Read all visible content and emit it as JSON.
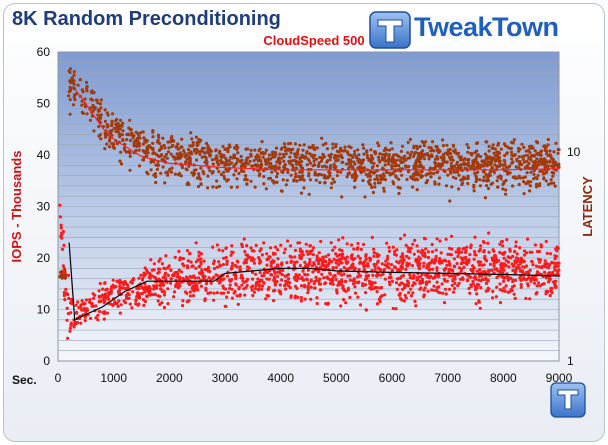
{
  "header": {
    "title": "8K Random Preconditioning",
    "brand": "TweakTown"
  },
  "chart_data": {
    "type": "scatter",
    "title": "8K Random Preconditioning",
    "subtitle": "CloudSpeed 500",
    "xlabel": "Sec.",
    "ylabel": "IOPS - Thousands",
    "y2label": "LATENCY",
    "xlim": [
      0,
      9000
    ],
    "ylim": [
      0,
      60
    ],
    "y2scale": "log",
    "y2lim": [
      1,
      30
    ],
    "x_ticks": [
      0,
      1000,
      2000,
      3000,
      4000,
      5000,
      6000,
      7000,
      8000,
      9000
    ],
    "y_ticks": [
      0,
      10,
      20,
      30,
      40,
      50,
      60
    ],
    "y2_ticks": [
      1,
      10
    ],
    "grid": true,
    "colors": {
      "iops": "#ff1a1a",
      "latency": "#a23a0c",
      "iops_trend": "#000000",
      "latency_trend": "#ff2020"
    },
    "series": [
      {
        "type": "scatter",
        "axis": "y",
        "band": {
          "x": [
            0,
            150,
            250,
            400,
            600,
            800,
            1000,
            1200,
            1500,
            1800,
            2000,
            2500,
            3000,
            3500,
            4000,
            5000,
            6000,
            7000,
            8000,
            9000
          ],
          "low": [
            30,
            3,
            4,
            5,
            6,
            7,
            8,
            8,
            9,
            9,
            9,
            9,
            9,
            9,
            9,
            9,
            9,
            9,
            9,
            9
          ],
          "high": [
            37,
            22,
            14,
            14,
            16,
            17,
            18,
            19,
            20,
            22,
            23,
            24,
            25,
            26,
            26,
            26,
            26,
            26,
            26,
            26
          ]
        }
      },
      {
        "type": "scatter",
        "axis": "y2",
        "band": {
          "x": [
            0,
            150,
            200,
            400,
            600,
            800,
            1000,
            1200,
            1500,
            1800,
            2000,
            2500,
            3000,
            4000,
            5000,
            6000,
            7000,
            8000,
            9000
          ],
          "low": [
            2.4,
            2.4,
            15,
            13,
            11,
            9.5,
            8.5,
            7.5,
            7,
            6.5,
            6.3,
            6,
            5.8,
            5.6,
            5.5,
            5.5,
            5.6,
            5.6,
            5.6
          ],
          "high": [
            2.8,
            2.8,
            28,
            25,
            22,
            18,
            16,
            15,
            14,
            13,
            13,
            12.5,
            12,
            12,
            12,
            12,
            12,
            12,
            12
          ]
        }
      },
      {
        "type": "line",
        "axis": "y",
        "x": [
          200,
          300,
          500,
          800,
          1200,
          1600,
          2000,
          2400,
          2600,
          2800,
          3000,
          3500,
          4000,
          4500,
          5000,
          6000,
          7000,
          8000,
          9000
        ],
        "y": [
          23,
          8,
          9,
          10.5,
          13.5,
          15.5,
          15.5,
          15.5,
          15.5,
          15.5,
          17,
          17.5,
          18,
          18,
          17.5,
          17.2,
          17,
          16.8,
          16.5
        ]
      },
      {
        "type": "line",
        "axis": "y2",
        "x": [
          300,
          500,
          800,
          1000,
          1500,
          2000,
          2500,
          3000,
          4000,
          5000,
          6000,
          7000,
          8000,
          9000
        ],
        "y": [
          20,
          17,
          13,
          11.5,
          9.5,
          8.8,
          8.6,
          8.4,
          8.2,
          8.2,
          8.2,
          8.2,
          8.2,
          8.3
        ]
      }
    ]
  }
}
